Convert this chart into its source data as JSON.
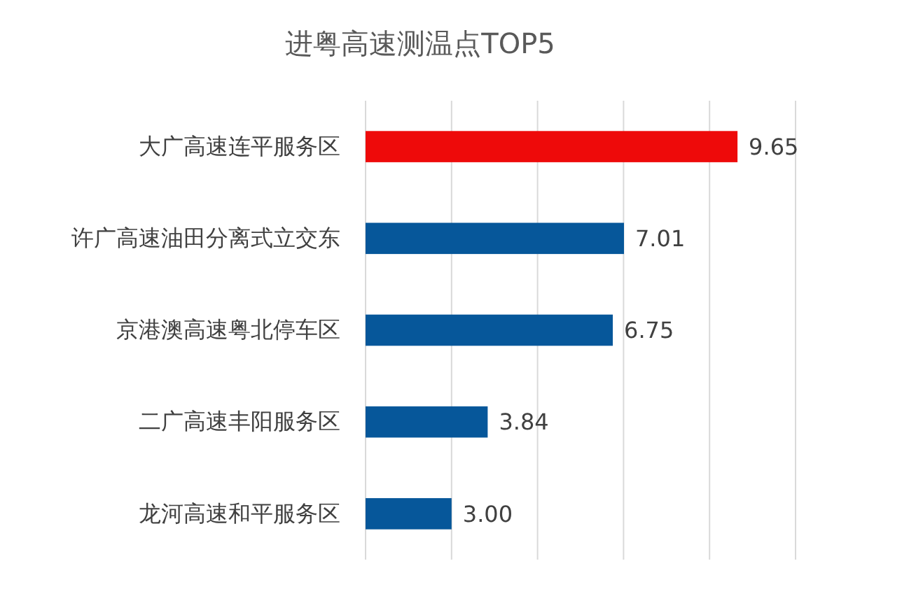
{
  "chart_data": {
    "type": "bar",
    "orientation": "horizontal",
    "title": "进粤高速测温点TOP5",
    "categories": [
      "大广高速连平服务区",
      "许广高速油田分离式立交东",
      "京港澳高速粤北停车区",
      "二广高速丰阳服务区",
      "龙河高速和平服务区"
    ],
    "values": [
      9.65,
      7.01,
      6.75,
      3.84,
      3.0
    ],
    "value_labels": [
      "9.65",
      "7.01",
      "6.75",
      "3.84",
      "3.00"
    ],
    "colors": [
      "#ee0a0a",
      "#06579a",
      "#06579a",
      "#06579a",
      "#06579a"
    ],
    "xlim": [
      1,
      11
    ],
    "xticks": [
      {
        "value": 1,
        "label": null
      },
      {
        "value": 3,
        "label": null
      },
      {
        "value": 5,
        "label": null
      },
      {
        "value": 7,
        "label": null
      },
      {
        "value": 9,
        "label": null
      },
      {
        "value": 11,
        "label": null
      }
    ],
    "tick_labels": "y",
    "grid": "x"
  }
}
